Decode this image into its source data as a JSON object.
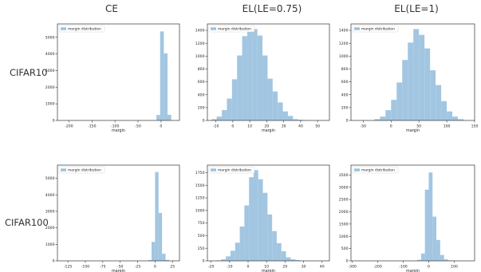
{
  "columns": [
    "CE",
    "EL(LE=0.75)",
    "EL(LE=1)"
  ],
  "rows": [
    "CIFAR10",
    "CIFAR100"
  ],
  "colors": {
    "bar": "#9dc3df",
    "bar_stroke": "#8fb8d8",
    "axis": "#333333",
    "text": "#222222"
  },
  "chart_data": [
    {
      "type": "bar",
      "panel": "cifar10-ce",
      "xlabel": "margin",
      "legend": "margin distribution",
      "legend_position": "top-left",
      "xlim": [
        -225,
        40
      ],
      "ylim": [
        0,
        5800
      ],
      "xticks": [
        -200,
        -150,
        -100,
        -50,
        0
      ],
      "yticks": [
        0,
        1000,
        2000,
        3000,
        4000,
        5000
      ],
      "bin_edges": [
        -10,
        -2,
        6,
        14,
        22
      ],
      "values": [
        330,
        5350,
        4030,
        340
      ]
    },
    {
      "type": "bar",
      "panel": "cifar10-el075",
      "xlabel": "margin",
      "legend": "margin distribution",
      "legend_position": "top-left",
      "xlim": [
        -15,
        57
      ],
      "ylim": [
        0,
        1500
      ],
      "xticks": [
        -10,
        0,
        10,
        20,
        30,
        40,
        50
      ],
      "yticks": [
        0,
        200,
        400,
        600,
        800,
        1000,
        1200,
        1400
      ],
      "bin_edges": [
        -12.5,
        -9.5,
        -6.5,
        -3.5,
        -0.5,
        2.5,
        5.5,
        8.5,
        11.5,
        14.5,
        17.5,
        20.5,
        23.5,
        26.5,
        29.5,
        32.5,
        35.5,
        38.5,
        41.5,
        44.5
      ],
      "values": [
        20,
        60,
        160,
        340,
        640,
        1010,
        1310,
        1390,
        1420,
        1320,
        1010,
        650,
        450,
        280,
        140,
        70,
        20,
        10,
        5
      ]
    },
    {
      "type": "bar",
      "panel": "cifar10-el1",
      "xlabel": "margin",
      "legend": "margin distribution",
      "legend_position": "top-left",
      "xlim": [
        -72,
        150
      ],
      "ylim": [
        0,
        1500
      ],
      "xticks": [
        -50,
        0,
        50,
        100,
        150
      ],
      "yticks": [
        0,
        200,
        400,
        600,
        800,
        1000,
        1200,
        1400
      ],
      "bin_edges": [
        -30,
        -20,
        -10,
        0,
        10,
        20,
        30,
        40,
        50,
        60,
        70,
        80,
        90,
        100,
        110,
        120,
        130
      ],
      "values": [
        20,
        60,
        160,
        320,
        590,
        940,
        1210,
        1420,
        1330,
        1120,
        780,
        550,
        300,
        140,
        60,
        20
      ]
    },
    {
      "type": "bar",
      "panel": "cifar100-ce",
      "xlabel": "margin",
      "legend": "margin distribution",
      "legend_position": "top-left",
      "xlim": [
        -140,
        35
      ],
      "ylim": [
        0,
        5800
      ],
      "xticks": [
        -125,
        -100,
        -75,
        -50,
        -25,
        0,
        25
      ],
      "yticks": [
        0,
        1000,
        2000,
        3000,
        4000,
        5000
      ],
      "bin_edges": [
        -10,
        -5,
        0,
        5,
        10,
        15,
        20
      ],
      "values": [
        50,
        1150,
        5380,
        2900,
        430,
        60
      ]
    },
    {
      "type": "bar",
      "panel": "cifar100-el075",
      "xlabel": "margin",
      "legend": "margin distribution",
      "legend_position": "top-left",
      "xlim": [
        -22,
        44
      ],
      "ylim": [
        0,
        1900
      ],
      "xticks": [
        -20,
        -10,
        0,
        10,
        20,
        30,
        40
      ],
      "yticks": [
        0,
        250,
        500,
        750,
        1000,
        1250,
        1500,
        1750
      ],
      "bin_edges": [
        -17,
        -14.5,
        -12,
        -9.5,
        -7,
        -4.5,
        -2,
        0.5,
        3,
        5.5,
        8,
        10.5,
        13,
        15.5,
        18,
        20.5,
        23,
        25.5,
        28,
        30.5
      ],
      "values": [
        10,
        30,
        90,
        200,
        360,
        680,
        1100,
        1660,
        1800,
        1620,
        1350,
        920,
        590,
        350,
        190,
        70,
        30,
        15,
        5
      ]
    },
    {
      "type": "bar",
      "panel": "cifar100-el1",
      "xlabel": "margin",
      "legend": "margin distribution",
      "legend_position": "top-left",
      "xlim": [
        -305,
        180
      ],
      "ylim": [
        0,
        3900
      ],
      "xticks": [
        -300,
        -200,
        -100,
        0,
        100
      ],
      "yticks": [
        0,
        500,
        1000,
        1500,
        2000,
        2500,
        3000,
        3500
      ],
      "bin_edges": [
        -45,
        -30,
        -15,
        0,
        15,
        30,
        45,
        60,
        75,
        90
      ],
      "values": [
        40,
        300,
        2900,
        3600,
        1800,
        850,
        240,
        60,
        20
      ]
    }
  ]
}
